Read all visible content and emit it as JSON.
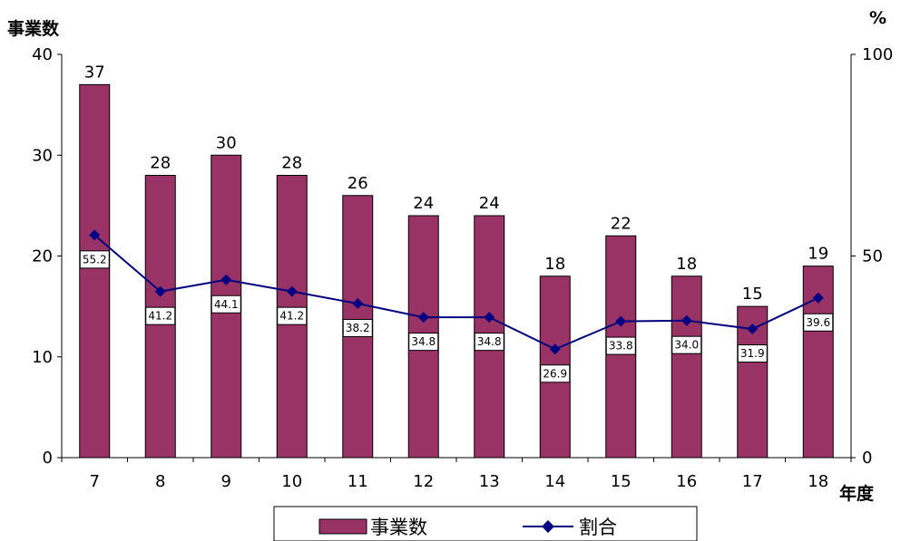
{
  "chart_data": {
    "type": "bar",
    "categories": [
      "7",
      "8",
      "9",
      "10",
      "11",
      "12",
      "13",
      "14",
      "15",
      "16",
      "17",
      "18"
    ],
    "series": [
      {
        "name": "事業数",
        "type": "bar",
        "axis": "left",
        "values": [
          37,
          28,
          30,
          28,
          26,
          24,
          24,
          18,
          22,
          18,
          15,
          19
        ],
        "color": "#993366"
      },
      {
        "name": "割合",
        "type": "line",
        "axis": "right",
        "values": [
          55.2,
          41.2,
          44.1,
          41.2,
          38.2,
          34.8,
          34.8,
          26.9,
          33.8,
          34.0,
          31.9,
          39.6
        ],
        "value_labels": [
          "55.2",
          "41.2",
          "44.1",
          "41.2",
          "38.2",
          "34.8",
          "34.8",
          "26.9",
          "33.8",
          "34.0",
          "31.9",
          "39.6"
        ],
        "color": "#000080"
      }
    ],
    "ylabel_left": "事業数",
    "ylabel_right": "%",
    "xlabel": "年度",
    "ylim_left": [
      0,
      40
    ],
    "yticks_left": [
      "0",
      "10",
      "20",
      "30",
      "40"
    ],
    "ylim_right": [
      0,
      100
    ],
    "yticks_right": [
      "0",
      "50",
      "100"
    ],
    "grid": false,
    "legend": "bottom"
  }
}
